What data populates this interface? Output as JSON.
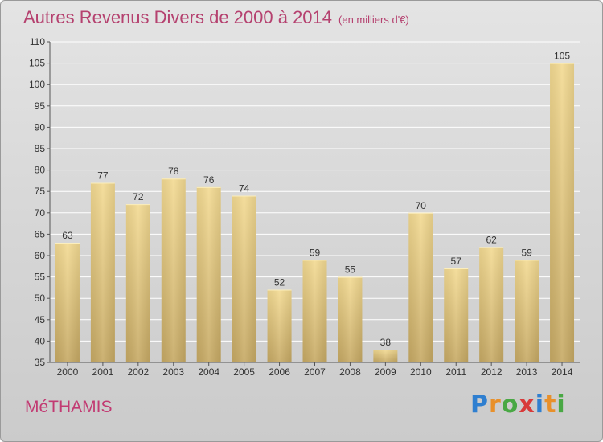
{
  "title": "Autres Revenus Divers de 2000 à 2014",
  "unit_note": "(en milliers d'€)",
  "commune": "MéTHAMIS",
  "logo": {
    "text": "Proxiti",
    "letter_colors": [
      "#2f7fd0",
      "#e8902a",
      "#49a844",
      "#d83a3a",
      "#2f7fd0",
      "#e8902a",
      "#49a844"
    ]
  },
  "colors": {
    "bar_top": "#f3da92",
    "bar_bottom": "#c6a964",
    "grid": "#ffffff",
    "text": "#333333",
    "title": "#b5416f"
  },
  "chart_data": {
    "type": "bar",
    "categories": [
      "2000",
      "2001",
      "2002",
      "2003",
      "2004",
      "2005",
      "2006",
      "2007",
      "2008",
      "2009",
      "2010",
      "2011",
      "2012",
      "2013",
      "2014"
    ],
    "values": [
      63,
      77,
      72,
      78,
      76,
      74,
      52,
      59,
      55,
      38,
      70,
      57,
      62,
      59,
      105
    ],
    "ylim": [
      35,
      110
    ],
    "yticks": [
      35,
      40,
      45,
      50,
      55,
      60,
      65,
      70,
      75,
      80,
      85,
      90,
      95,
      100,
      105,
      110
    ],
    "grid": true,
    "data_labels": true
  }
}
